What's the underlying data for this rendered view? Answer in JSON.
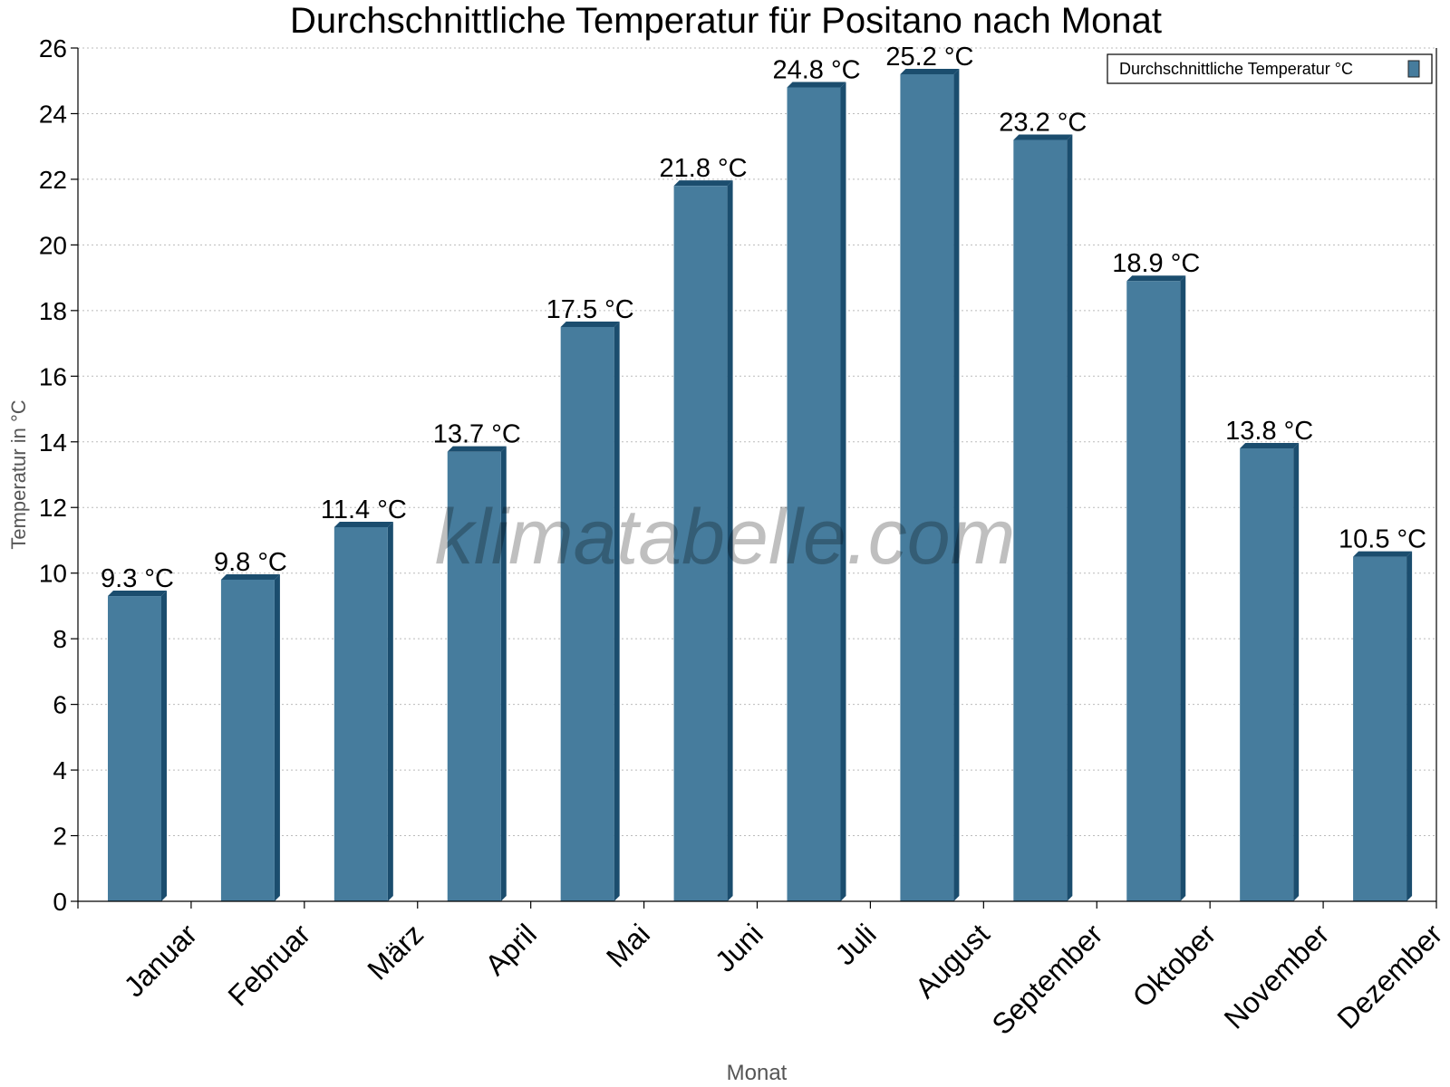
{
  "chart_data": {
    "type": "bar",
    "title": "Durchschnittliche Temperatur für Positano nach Monat",
    "xlabel": "Monat",
    "ylabel": "Temperatur in °C",
    "categories": [
      "Januar",
      "Februar",
      "März",
      "April",
      "Mai",
      "Juni",
      "Juli",
      "August",
      "September",
      "Oktober",
      "November",
      "Dezember"
    ],
    "series": [
      {
        "name": "Durchschnittliche Temperatur °C",
        "values": [
          9.3,
          9.8,
          11.4,
          13.7,
          17.5,
          21.8,
          24.8,
          25.2,
          23.2,
          18.9,
          13.8,
          10.5
        ],
        "labels": [
          "9.3 °C",
          "9.8 °C",
          "11.4 °C",
          "13.7 °C",
          "17.5 °C",
          "21.8 °C",
          "24.8 °C",
          "25.2 °C",
          "23.2 °C",
          "18.9 °C",
          "13.8 °C",
          "10.5 °C"
        ],
        "color": "#467c9d",
        "side_color": "#1b4d6e"
      }
    ],
    "ylim": [
      0,
      26
    ],
    "yticks": [
      0,
      2,
      4,
      6,
      8,
      10,
      12,
      14,
      16,
      18,
      20,
      22,
      24,
      26
    ],
    "grid": true,
    "legend": "top-right",
    "watermark": "klimatabelle.com"
  }
}
